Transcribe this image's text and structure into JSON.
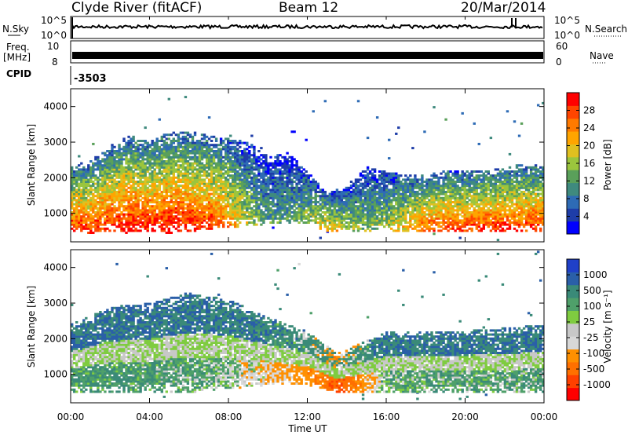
{
  "header": {
    "station": "Clyde River (fitACF)",
    "beam": "Beam 12",
    "date": "20/Mar/2014"
  },
  "panels": {
    "nsky": {
      "label": "N.Sky",
      "ticks": [
        "10^5",
        "10^0"
      ],
      "right_label": "N.Search",
      "right_ticks": [
        "10^5",
        "10^0"
      ]
    },
    "freq": {
      "label_line1": "Freq.",
      "label_line2": "[MHz]",
      "ticks": [
        "10",
        "8"
      ],
      "right_label": "Nave",
      "right_ticks": [
        "60",
        "0"
      ]
    },
    "cpid": {
      "label": "CPID",
      "value": "-3503"
    }
  },
  "colors": {
    "power": [
      "#0000ff",
      "#1e3da8",
      "#2e6bb5",
      "#3f8a7e",
      "#5aa05a",
      "#9bc53d",
      "#e0c020",
      "#ffa500",
      "#ff7a00",
      "#ff4500",
      "#ff0000"
    ],
    "velocity": [
      "#2040c8",
      "#2a5fa8",
      "#3a8a78",
      "#4fa06a",
      "#7fcc40",
      "#c8c8c8",
      "#d8d8d8",
      "#ff9000",
      "#ff7000",
      "#ff4000",
      "#ff0000"
    ]
  },
  "chart_data": [
    {
      "type": "heatmap",
      "name": "power",
      "ylabel": "Slant Range [km]",
      "ylim": [
        200,
        4500
      ],
      "yticks": [
        1000,
        2000,
        3000,
        4000
      ],
      "xlim": [
        0,
        24
      ],
      "xticks": [
        "00:00",
        "04:00",
        "08:00",
        "12:00",
        "16:00",
        "20:00",
        "00:00"
      ],
      "colorbar": {
        "label": "Power [dB]",
        "ticks": [
          "4",
          "8",
          "12",
          "16",
          "20",
          "24",
          "28"
        ],
        "range": [
          0,
          30
        ]
      },
      "profile": [
        {
          "t": 0.0,
          "lo": 500,
          "hi": 2300,
          "mid": 24
        },
        {
          "t": 1.0,
          "lo": 450,
          "hi": 2500,
          "mid": 24
        },
        {
          "t": 2.0,
          "lo": 480,
          "hi": 2900,
          "mid": 25
        },
        {
          "t": 3.0,
          "lo": 450,
          "hi": 3200,
          "mid": 26
        },
        {
          "t": 4.0,
          "lo": 500,
          "hi": 3000,
          "mid": 25
        },
        {
          "t": 5.0,
          "lo": 450,
          "hi": 3300,
          "mid": 26
        },
        {
          "t": 6.0,
          "lo": 500,
          "hi": 3300,
          "mid": 25
        },
        {
          "t": 7.0,
          "lo": 550,
          "hi": 3200,
          "mid": 24
        },
        {
          "t": 8.0,
          "lo": 600,
          "hi": 3100,
          "mid": 20
        },
        {
          "t": 9.0,
          "lo": 650,
          "hi": 3000,
          "mid": 14
        },
        {
          "t": 10.0,
          "lo": 700,
          "hi": 2600,
          "mid": 10
        },
        {
          "t": 11.0,
          "lo": 700,
          "hi": 2700,
          "mid": 10
        },
        {
          "t": 12.0,
          "lo": 700,
          "hi": 2200,
          "mid": 14
        },
        {
          "t": 13.0,
          "lo": 500,
          "hi": 1600,
          "mid": 18
        },
        {
          "t": 14.0,
          "lo": 500,
          "hi": 1800,
          "mid": 14
        },
        {
          "t": 15.0,
          "lo": 500,
          "hi": 2300,
          "mid": 12
        },
        {
          "t": 16.0,
          "lo": 500,
          "hi": 2200,
          "mid": 14
        },
        {
          "t": 17.0,
          "lo": 500,
          "hi": 2100,
          "mid": 18
        },
        {
          "t": 18.0,
          "lo": 500,
          "hi": 2100,
          "mid": 22
        },
        {
          "t": 19.0,
          "lo": 500,
          "hi": 2200,
          "mid": 23
        },
        {
          "t": 20.0,
          "lo": 500,
          "hi": 2200,
          "mid": 23
        },
        {
          "t": 21.0,
          "lo": 500,
          "hi": 2200,
          "mid": 24
        },
        {
          "t": 22.0,
          "lo": 500,
          "hi": 2300,
          "mid": 24
        },
        {
          "t": 23.0,
          "lo": 500,
          "hi": 2400,
          "mid": 24
        },
        {
          "t": 24.0,
          "lo": 500,
          "hi": 2400,
          "mid": 24
        }
      ]
    },
    {
      "type": "heatmap",
      "name": "velocity",
      "ylabel": "Slant Range [km]",
      "ylim": [
        200,
        4500
      ],
      "yticks": [
        1000,
        2000,
        3000,
        4000
      ],
      "xlim": [
        0,
        24
      ],
      "xlabel": "Time UT",
      "xticks": [
        "00:00",
        "04:00",
        "08:00",
        "12:00",
        "16:00",
        "20:00",
        "00:00"
      ],
      "colorbar": {
        "label": "Velocity [m s⁻¹]",
        "ticks": [
          "1000",
          "500",
          "100",
          "25",
          "-25",
          "-100",
          "-500",
          "-1000"
        ]
      },
      "profile": [
        {
          "t": 0.0,
          "lo": 500,
          "hi": 2400,
          "mid": 100
        },
        {
          "t": 2.0,
          "lo": 480,
          "hi": 2900,
          "mid": 100
        },
        {
          "t": 4.0,
          "lo": 500,
          "hi": 3000,
          "mid": 80
        },
        {
          "t": 6.0,
          "lo": 500,
          "hi": 3300,
          "mid": 60
        },
        {
          "t": 8.0,
          "lo": 600,
          "hi": 3100,
          "mid": 20
        },
        {
          "t": 10.0,
          "lo": 700,
          "hi": 2600,
          "mid": -100
        },
        {
          "t": 12.0,
          "lo": 700,
          "hi": 2200,
          "mid": -200
        },
        {
          "t": 13.5,
          "lo": 500,
          "hi": 1600,
          "mid": -500
        },
        {
          "t": 16.0,
          "lo": 500,
          "hi": 2200,
          "mid": 50
        },
        {
          "t": 19.0,
          "lo": 500,
          "hi": 2200,
          "mid": 60
        },
        {
          "t": 22.0,
          "lo": 500,
          "hi": 2300,
          "mid": 60
        },
        {
          "t": 24.0,
          "lo": 500,
          "hi": 2400,
          "mid": 80
        }
      ]
    }
  ]
}
